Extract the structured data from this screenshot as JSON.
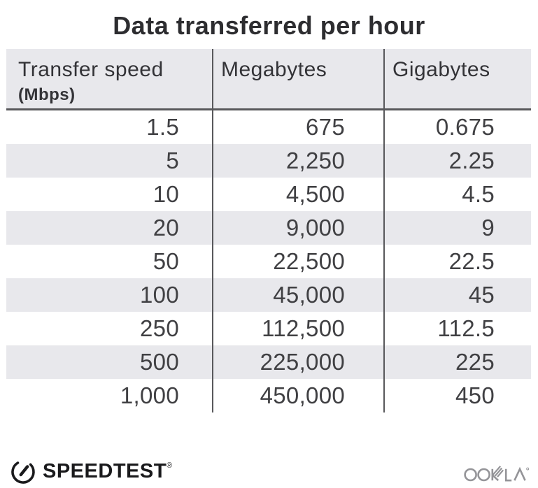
{
  "title": "Data transferred per hour",
  "table": {
    "header": {
      "col1_label": "Transfer speed",
      "col1_sublabel": "(Mbps)",
      "col2_label": "Megabytes",
      "col3_label": "Gigabytes"
    },
    "rows": [
      [
        "1.5",
        "675",
        "0.675"
      ],
      [
        "5",
        "2,250",
        "2.25"
      ],
      [
        "10",
        "4,500",
        "4.5"
      ],
      [
        "20",
        "9,000",
        "9"
      ],
      [
        "50",
        "22,500",
        "22.5"
      ],
      [
        "100",
        "45,000",
        "45"
      ],
      [
        "250",
        "112,500",
        "112.5"
      ],
      [
        "500",
        "225,000",
        "225"
      ],
      [
        "1,000",
        "450,000",
        "450"
      ]
    ]
  },
  "footer": {
    "speedtest_label": "SPEEDTEST",
    "speedtest_trademark": "®",
    "ookla_label": "OOKLA"
  },
  "icons": {
    "gauge": "speedtest-gauge-icon",
    "ookla": "ookla-wordmark"
  },
  "colors": {
    "stripe_gray": "#e8e8ec",
    "divider_gray": "#58585b",
    "title_text": "#2d2d30",
    "body_text": "#404043",
    "logo_black": "#1a1a1c",
    "ookla_gray": "#949498"
  },
  "chart_data": {
    "type": "table",
    "title": "Data transferred per hour",
    "columns": [
      "Transfer speed (Mbps)",
      "Megabytes",
      "Gigabytes"
    ],
    "rows": [
      [
        1.5,
        675,
        0.675
      ],
      [
        5,
        2250,
        2.25
      ],
      [
        10,
        4500,
        4.5
      ],
      [
        20,
        9000,
        9
      ],
      [
        50,
        22500,
        22.5
      ],
      [
        100,
        45000,
        45
      ],
      [
        250,
        112500,
        112.5
      ],
      [
        500,
        225000,
        225
      ],
      [
        1000,
        450000,
        450
      ]
    ],
    "layout": {
      "striped_rows": "even rows shaded",
      "value_alignment": "right",
      "grid": "vertical column dividers only"
    }
  }
}
